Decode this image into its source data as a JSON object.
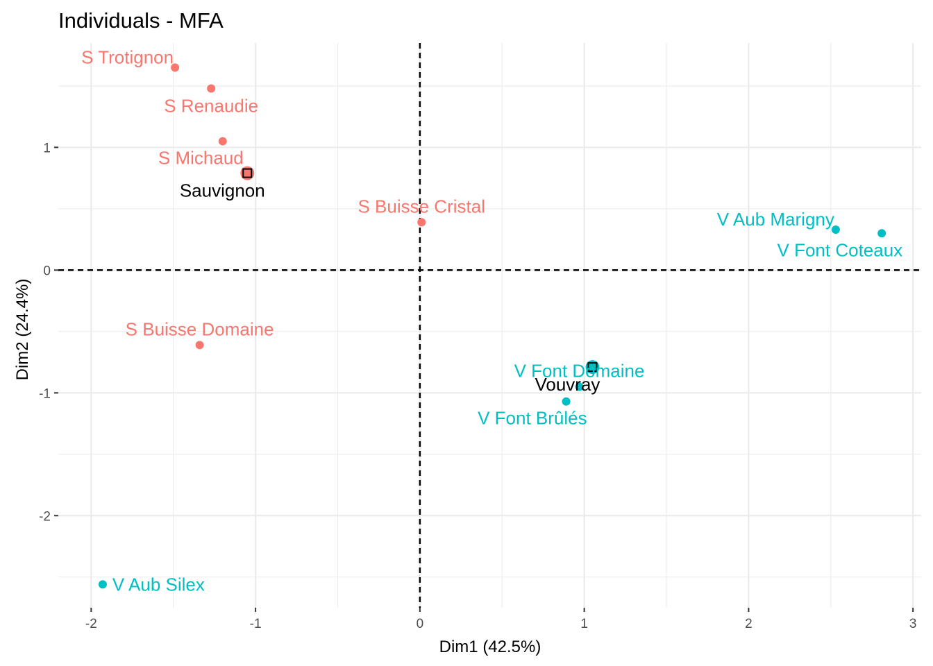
{
  "chart_data": {
    "type": "scatter",
    "title": "Individuals - MFA",
    "xlabel": "Dim1 (42.5%)",
    "ylabel": "Dim2 (24.4%)",
    "xlim": [
      -2.2,
      3.05
    ],
    "ylim": [
      -2.75,
      1.85
    ],
    "x_ticks": [
      -2,
      -1,
      0,
      1,
      2,
      3
    ],
    "y_ticks": [
      -2,
      -1,
      0,
      1
    ],
    "grid": true,
    "reference_lines": {
      "x": 0,
      "y": 0,
      "style": "dashed"
    },
    "groups": [
      {
        "key": "S",
        "color": "#F8766D"
      },
      {
        "key": "V",
        "color": "#00BFC4"
      }
    ],
    "points": [
      {
        "name": "S Trotignon",
        "group": "S",
        "x": -1.49,
        "y": 1.65,
        "label_pos": "top-left"
      },
      {
        "name": "S Renaudie",
        "group": "S",
        "x": -1.27,
        "y": 1.48,
        "label_pos": "bottom"
      },
      {
        "name": "S Michaud",
        "group": "S",
        "x": -1.2,
        "y": 1.05,
        "label_pos": "bottom-left"
      },
      {
        "name": "S Buisse Cristal",
        "group": "S",
        "x": 0.01,
        "y": 0.39,
        "label_pos": "top"
      },
      {
        "name": "S Buisse Domaine",
        "group": "S",
        "x": -1.34,
        "y": -0.61,
        "label_pos": "top"
      },
      {
        "name": "V Aub Marigny",
        "group": "V",
        "x": 2.53,
        "y": 0.33,
        "label_pos": "top-left"
      },
      {
        "name": "V Font Coteaux",
        "group": "V",
        "x": 2.81,
        "y": 0.3,
        "label_pos": "bottom-left"
      },
      {
        "name": "V Font Domaine",
        "group": "V",
        "x": 0.97,
        "y": -0.95,
        "label_pos": "top"
      },
      {
        "name": "V Font Brûlés",
        "group": "V",
        "x": 0.89,
        "y": -1.07,
        "label_pos": "bottom-left"
      },
      {
        "name": "V Aub Silex",
        "group": "V",
        "x": -1.93,
        "y": -2.56,
        "label_pos": "right"
      }
    ],
    "centroids": [
      {
        "name": "Sauvignon",
        "group": "S",
        "x": -1.05,
        "y": 0.79
      },
      {
        "name": "Vouvray",
        "group": "V",
        "x": 1.05,
        "y": -0.79
      }
    ]
  }
}
